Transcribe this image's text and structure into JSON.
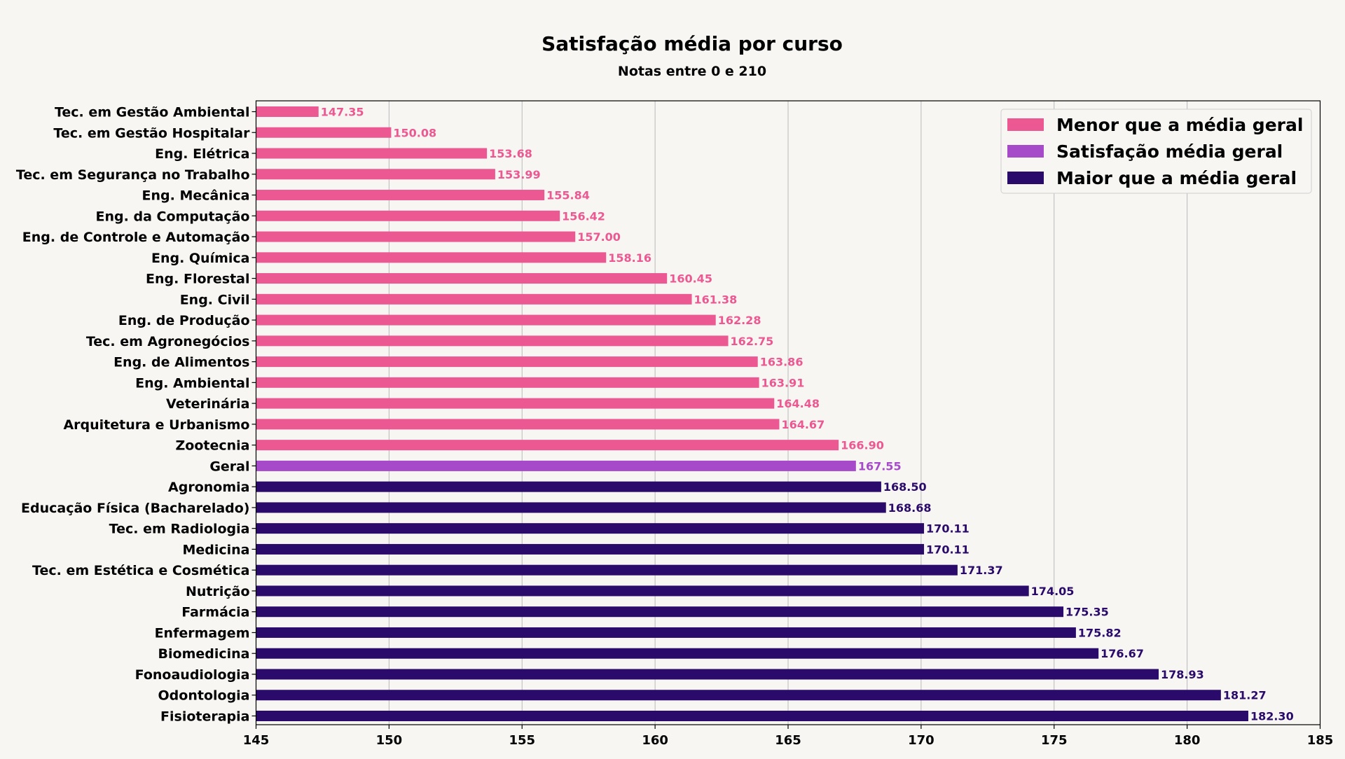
{
  "chart_data": {
    "type": "bar",
    "orientation": "horizontal",
    "title": "Satisfação média por curso",
    "subtitle": "Notas entre 0 e 210",
    "xlabel": "",
    "ylabel": "",
    "xlim": [
      145,
      185
    ],
    "xticks": [
      145,
      150,
      155,
      160,
      165,
      170,
      175,
      180,
      185
    ],
    "grid": "vertical",
    "legend_position": "top-right",
    "legend": [
      {
        "label": "Menor que a média geral",
        "color": "#ec5891"
      },
      {
        "label": "Satisfação média geral",
        "color": "#a64ac9"
      },
      {
        "label": "Maior que a média geral",
        "color": "#2a0a6a"
      }
    ],
    "categories": [
      "Tec. em Gestão Ambiental",
      "Tec. em Gestão Hospitalar",
      "Eng. Elétrica",
      "Tec. em Segurança no Trabalho",
      "Eng. Mecânica",
      "Eng. da Computação",
      "Eng. de Controle e Automação",
      "Eng. Química",
      "Eng. Florestal",
      "Eng. Civil",
      "Eng. de Produção",
      "Tec. em Agronegócios",
      "Eng. de Alimentos",
      "Eng. Ambiental",
      "Veterinária",
      "Arquitetura e Urbanismo",
      "Zootecnia",
      "Geral",
      "Agronomia",
      "Educação Física (Bacharelado)",
      "Tec. em Radiologia",
      "Medicina",
      "Tec. em Estética e Cosmética",
      "Nutrição",
      "Farmácia",
      "Enfermagem",
      "Biomedicina",
      "Fonoaudiologia",
      "Odontologia",
      "Fisioterapia"
    ],
    "values": [
      147.35,
      150.08,
      153.68,
      153.99,
      155.84,
      156.42,
      157.0,
      158.16,
      160.45,
      161.38,
      162.28,
      162.75,
      163.86,
      163.91,
      164.48,
      164.67,
      166.9,
      167.55,
      168.5,
      168.68,
      170.11,
      170.11,
      171.37,
      174.05,
      175.35,
      175.82,
      176.67,
      178.93,
      181.27,
      182.3
    ],
    "value_labels": [
      "147.35",
      "150.08",
      "153.68",
      "153.99",
      "155.84",
      "156.42",
      "157.00",
      "158.16",
      "160.45",
      "161.38",
      "162.28",
      "162.75",
      "163.86",
      "163.91",
      "164.48",
      "164.67",
      "166.90",
      "167.55",
      "168.50",
      "168.68",
      "170.11",
      "170.11",
      "171.37",
      "174.05",
      "175.35",
      "175.82",
      "176.67",
      "178.93",
      "181.27",
      "182.30"
    ],
    "group": [
      0,
      0,
      0,
      0,
      0,
      0,
      0,
      0,
      0,
      0,
      0,
      0,
      0,
      0,
      0,
      0,
      0,
      1,
      2,
      2,
      2,
      2,
      2,
      2,
      2,
      2,
      2,
      2,
      2,
      2
    ]
  }
}
